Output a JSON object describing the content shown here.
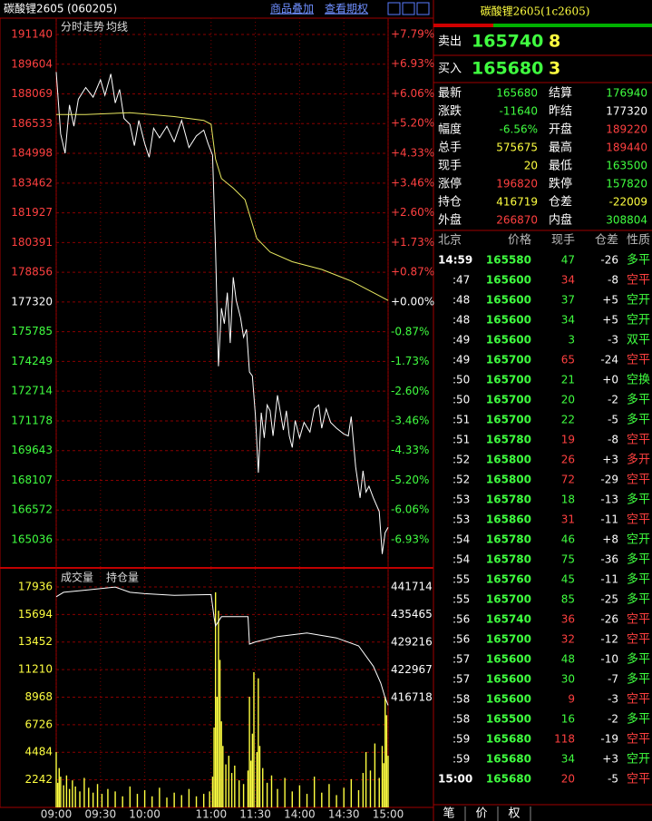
{
  "header": {
    "symbol": "碳酸锂2605",
    "code": "(060205)",
    "buttons": [
      "商品叠加",
      "查看期权"
    ]
  },
  "chart_data": [
    {
      "type": "line",
      "series": [
        {
          "name": "分时走势",
          "color": "#ffffff",
          "x": [
            0,
            3,
            6,
            9,
            12,
            15,
            20,
            25,
            30,
            33,
            37,
            40,
            43,
            46,
            50,
            53,
            56,
            60,
            63,
            66,
            70,
            75,
            80,
            85,
            90,
            95,
            100,
            103,
            106,
            108,
            110,
            112,
            114,
            116,
            118,
            120,
            122,
            125,
            127,
            129,
            131,
            133,
            135,
            137,
            139,
            141,
            143,
            145,
            147,
            150,
            152,
            154,
            156,
            158,
            160,
            162,
            165,
            168,
            172,
            175,
            178,
            180,
            183,
            186,
            190,
            195,
            198,
            200,
            203,
            206,
            208,
            210,
            212,
            215,
            219,
            221,
            223,
            225
          ],
          "values": [
            189200,
            186000,
            185000,
            187500,
            186400,
            187800,
            188400,
            187900,
            188800,
            188000,
            189100,
            187600,
            188300,
            186800,
            186500,
            185400,
            186700,
            185500,
            184800,
            186300,
            185800,
            186400,
            185600,
            186700,
            185300,
            185900,
            186200,
            185500,
            184900,
            180000,
            174000,
            177000,
            176200,
            177800,
            175200,
            178600,
            177400,
            176500,
            175500,
            175900,
            173700,
            173500,
            171500,
            168500,
            171600,
            170300,
            172000,
            171700,
            170400,
            172500,
            171600,
            170700,
            171700,
            170400,
            169800,
            171200,
            170300,
            171100,
            170600,
            171800,
            172000,
            170800,
            171800,
            171100,
            170800,
            170500,
            170400,
            171400,
            168800,
            167200,
            168600,
            167500,
            167800,
            167200,
            166500,
            164300,
            165400,
            165680
          ]
        },
        {
          "name": "均线",
          "color": "#e8e860",
          "x": [
            0,
            20,
            50,
            80,
            100,
            105,
            108,
            112,
            120,
            128,
            132,
            136,
            145,
            160,
            180,
            200,
            215,
            225
          ],
          "values": [
            187000,
            187000,
            187100,
            186900,
            186700,
            186500,
            184700,
            183700,
            183200,
            182600,
            181600,
            180600,
            179900,
            179400,
            179000,
            178400,
            177800,
            177400
          ]
        }
      ],
      "xlim": [
        0,
        225
      ],
      "ylim": [
        163630,
        191983
      ],
      "yticks": [
        191140,
        189604,
        188069,
        186533,
        184998,
        183462,
        181927,
        180391,
        178856,
        177320,
        175785,
        174249,
        172714,
        171178,
        169643,
        168107,
        166572,
        165036
      ],
      "y2lim": [
        -7.72,
        8.27
      ],
      "y2ticks": [
        {
          "value": 7.79,
          "label": "+7.79%"
        },
        {
          "value": 6.93,
          "label": "+6.93%"
        },
        {
          "value": 6.06,
          "label": "+6.06%"
        },
        {
          "value": 5.2,
          "label": "+5.20%"
        },
        {
          "value": 4.33,
          "label": "+4.33%"
        },
        {
          "value": 3.46,
          "label": "+3.46%"
        },
        {
          "value": 2.6,
          "label": "+2.60%"
        },
        {
          "value": 1.73,
          "label": "+1.73%"
        },
        {
          "value": 0.87,
          "label": "+0.87%"
        },
        {
          "value": 0,
          "label": "+0.00%"
        },
        {
          "value": -0.87,
          "label": "-0.87%"
        },
        {
          "value": -1.73,
          "label": "-1.73%"
        },
        {
          "value": -2.6,
          "label": "-2.60%"
        },
        {
          "value": -3.46,
          "label": "-3.46%"
        },
        {
          "value": -4.33,
          "label": "-4.33%"
        },
        {
          "value": -5.2,
          "label": "-5.20%"
        },
        {
          "value": -6.06,
          "label": "-6.06%"
        },
        {
          "value": -6.93,
          "label": "-6.93%"
        }
      ],
      "grid": true
    },
    {
      "type": "bar",
      "series": [
        {
          "name": "成交量",
          "color": "#ffff40",
          "x": [
            0,
            1,
            2,
            3,
            5,
            7,
            9,
            11,
            13,
            16,
            19,
            22,
            25,
            28,
            31,
            35,
            40,
            45,
            50,
            55,
            60,
            65,
            70,
            75,
            80,
            85,
            90,
            95,
            100,
            104,
            106,
            107,
            108,
            109,
            110,
            111,
            112,
            113,
            115,
            117,
            119,
            121,
            124,
            127,
            130,
            131,
            132,
            133,
            134,
            136,
            137,
            138,
            140,
            143,
            146,
            150,
            155,
            160,
            165,
            170,
            175,
            180,
            185,
            190,
            195,
            200,
            205,
            208,
            210,
            213,
            216,
            219,
            221,
            222,
            223,
            224,
            225
          ],
          "values": [
            4500,
            2000,
            3200,
            2500,
            1800,
            2600,
            1500,
            2200,
            1700,
            1300,
            2400,
            1600,
            1200,
            1900,
            1100,
            1500,
            1300,
            900,
            1700,
            1100,
            1400,
            900,
            1600,
            800,
            1200,
            1000,
            1500,
            900,
            1100,
            1300,
            2500,
            6500,
            17500,
            9000,
            16000,
            12000,
            7000,
            5000,
            3500,
            4200,
            2800,
            3400,
            2200,
            1900,
            3000,
            9000,
            3800,
            6000,
            11000,
            4500,
            10500,
            5000,
            3200,
            2000,
            2600,
            1500,
            2400,
            1300,
            1800,
            1100,
            2500,
            1200,
            1900,
            1000,
            1600,
            2300,
            1400,
            2800,
            4500,
            3000,
            5200,
            2400,
            5000,
            3600,
            9000,
            7500,
            4200
          ]
        },
        {
          "name": "持仓量",
          "color": "#ffffff",
          "axis": "y2",
          "x": [
            0,
            5,
            20,
            40,
            50,
            60,
            80,
            105,
            107,
            108,
            112,
            130,
            131,
            135,
            150,
            170,
            190,
            205,
            215,
            220,
            223,
            225
          ],
          "values": [
            439500,
            440500,
            441000,
            441700,
            440500,
            440200,
            439800,
            440000,
            434800,
            432900,
            435000,
            435000,
            428800,
            429300,
            430500,
            431300,
            430200,
            428400,
            423800,
            420000,
            416700,
            415000
          ]
        }
      ],
      "xlim": [
        0,
        225
      ],
      "xticks": [
        {
          "value": 0,
          "label": "09:00"
        },
        {
          "value": 30,
          "label": "09:30"
        },
        {
          "value": 60,
          "label": "10:00"
        },
        {
          "value": 105,
          "label": "11:00"
        },
        {
          "value": 135,
          "label": "11:30"
        },
        {
          "value": 165,
          "label": "14:00"
        },
        {
          "value": 195,
          "label": "14:30"
        },
        {
          "value": 225,
          "label": "15:00"
        }
      ],
      "ylim": [
        0,
        19410
      ],
      "yticks": [
        2242,
        4484,
        6726,
        8968,
        11210,
        13452,
        15694,
        17936
      ],
      "y2lim": [
        391923,
        445812
      ],
      "y2ticks": [
        416718,
        422967,
        429216,
        435465,
        441714
      ],
      "grid": true
    }
  ],
  "quote": {
    "title": "碳酸锂2605(1c2605)",
    "ask": {
      "label": "卖出",
      "price": 165740,
      "volume": 8
    },
    "bid": {
      "label": "买入",
      "price": 165680,
      "volume": 3
    },
    "stats": [
      [
        {
          "label": "最新",
          "value": 165680,
          "color": "#40ff40"
        },
        {
          "label": "结算",
          "value": 176940,
          "color": "#40ff40"
        }
      ],
      [
        {
          "label": "涨跌",
          "value": -11640,
          "color": "#40ff40"
        },
        {
          "label": "昨结",
          "value": 177320,
          "color": "#ffffff"
        }
      ],
      [
        {
          "label": "幅度",
          "value": "-6.56%",
          "color": "#40ff40"
        },
        {
          "label": "开盘",
          "value": 189220,
          "color": "#ff4040"
        }
      ],
      [
        {
          "label": "总手",
          "value": 575675,
          "color": "#ffff40"
        },
        {
          "label": "最高",
          "value": 189440,
          "color": "#ff4040"
        }
      ],
      [
        {
          "label": "现手",
          "value": 20,
          "color": "#ffff40"
        },
        {
          "label": "最低",
          "value": 163500,
          "color": "#40ff40"
        }
      ],
      [
        {
          "label": "涨停",
          "value": 196820,
          "color": "#ff4040"
        },
        {
          "label": "跌停",
          "value": 157820,
          "color": "#40ff40"
        }
      ],
      [
        {
          "label": "持仓",
          "value": 416719,
          "color": "#ffff40"
        },
        {
          "label": "仓差",
          "value": -22009,
          "color": "#ffff40"
        }
      ],
      [
        {
          "label": "外盘",
          "value": 266870,
          "color": "#ff4040"
        },
        {
          "label": "内盘",
          "value": 308804,
          "color": "#40ff40"
        }
      ]
    ]
  },
  "trades": {
    "columns": [
      "北京",
      "价格",
      "现手",
      "仓差",
      "性质"
    ],
    "rows": [
      [
        "14:59",
        165580,
        47,
        "-26",
        "多平"
      ],
      [
        ":47",
        165600,
        34,
        "-8",
        "空平"
      ],
      [
        ":48",
        165600,
        37,
        "+5",
        "空开"
      ],
      [
        ":48",
        165600,
        34,
        "+5",
        "空开"
      ],
      [
        ":49",
        165600,
        3,
        "-3",
        "双平"
      ],
      [
        ":49",
        165700,
        65,
        "-24",
        "空平"
      ],
      [
        ":50",
        165700,
        21,
        "+0",
        "空换"
      ],
      [
        ":50",
        165700,
        20,
        "-2",
        "多平"
      ],
      [
        ":51",
        165700,
        22,
        "-5",
        "多平"
      ],
      [
        ":51",
        165780,
        19,
        "-8",
        "空平"
      ],
      [
        ":52",
        165800,
        26,
        "+3",
        "多开"
      ],
      [
        ":52",
        165800,
        72,
        "-29",
        "空平"
      ],
      [
        ":53",
        165780,
        18,
        "-13",
        "多平"
      ],
      [
        ":53",
        165860,
        31,
        "-11",
        "空平"
      ],
      [
        ":54",
        165780,
        46,
        "+8",
        "空开"
      ],
      [
        ":54",
        165780,
        75,
        "-36",
        "多平"
      ],
      [
        ":55",
        165760,
        45,
        "-11",
        "多平"
      ],
      [
        ":55",
        165700,
        85,
        "-25",
        "多平"
      ],
      [
        ":56",
        165740,
        36,
        "-26",
        "空平"
      ],
      [
        ":56",
        165700,
        32,
        "-12",
        "空平"
      ],
      [
        ":57",
        165600,
        48,
        "-10",
        "多平"
      ],
      [
        ":57",
        165600,
        30,
        "-7",
        "多平"
      ],
      [
        ":58",
        165600,
        9,
        "-3",
        "空平"
      ],
      [
        ":58",
        165500,
        16,
        "-2",
        "多平"
      ],
      [
        ":59",
        165680,
        118,
        "-19",
        "空平"
      ],
      [
        ":59",
        165680,
        34,
        "+3",
        "空开"
      ],
      [
        "15:00",
        165680,
        20,
        "-5",
        "空平"
      ]
    ]
  },
  "tabs": [
    "笔",
    "价",
    "权"
  ]
}
